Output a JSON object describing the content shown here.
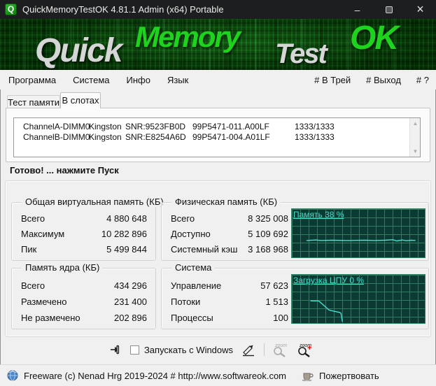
{
  "window": {
    "title": "QuickMemoryTestOK 4.81.1 Admin (x64) Portable",
    "icon_letter": "Q",
    "minimize_glyph": "–",
    "close_glyph": "×"
  },
  "banner": {
    "logo_quick": "Quick",
    "logo_memory": "Memory",
    "logo_test": "Test",
    "logo_ok": "OK"
  },
  "menu": {
    "left": [
      "Программа",
      "Система",
      "Инфо",
      "Язык"
    ],
    "right": [
      "# В Трей",
      "# Выход",
      "# ?"
    ]
  },
  "tabs": [
    {
      "label": "Тест памяти",
      "active": false
    },
    {
      "label": "В слотах",
      "active": true
    }
  ],
  "slots": {
    "rows": [
      [
        "ChannelA-DIMM0",
        "Kingston",
        "SNR:9523FB0D",
        "99P5471-011.A00LF",
        "1333/1333"
      ],
      [
        "ChannelB-DIMM0",
        "Kingston",
        "SNR:E8254A6D",
        "99P5471-004.A01LF",
        "1333/1333"
      ]
    ],
    "scroll_up_glyph": "▲",
    "scroll_down_glyph": "▼"
  },
  "ready_message": "Готово! ... нажмите Пуск",
  "groups": {
    "virtual": {
      "title": "Общая виртуальная память (КБ)",
      "rows": [
        {
          "label": "Всего",
          "value": "4 880 648"
        },
        {
          "label": "Максимум",
          "value": "10 282 896"
        },
        {
          "label": "Пик",
          "value": "5 499 844"
        }
      ]
    },
    "physical": {
      "title": "Физическая память (КБ)",
      "rows": [
        {
          "label": "Всего",
          "value": "8 325 008"
        },
        {
          "label": "Доступно",
          "value": "5 109 692"
        },
        {
          "label": "Системный кэш",
          "value": "3 168 968"
        }
      ]
    },
    "kernel": {
      "title": "Память ядра (КБ)",
      "rows": [
        {
          "label": "Всего",
          "value": "434 296"
        },
        {
          "label": "Размечено",
          "value": "231 400"
        },
        {
          "label": "Не размечено",
          "value": "202 896"
        }
      ]
    },
    "system": {
      "title": "Система",
      "rows": [
        {
          "label": "Управление",
          "value": "57 623"
        },
        {
          "label": "Потоки",
          "value": "1 513"
        },
        {
          "label": "Процессы",
          "value": "100"
        }
      ]
    }
  },
  "chart_data": [
    {
      "type": "line",
      "title": "Память 38 %",
      "x_range": [
        0,
        100
      ],
      "y_range": [
        0,
        100
      ],
      "grid": true,
      "legend_position": "top-left",
      "line_color": "#45e0d0",
      "bg_color": "#0b3a33",
      "grid_color": "#2e7d61",
      "series": [
        {
          "name": "Память %",
          "points": [
            [
              11,
              35
            ],
            [
              18,
              36
            ],
            [
              22,
              35
            ],
            [
              30,
              35.5
            ],
            [
              42,
              35
            ],
            [
              55,
              35.5
            ],
            [
              62,
              35
            ],
            [
              70,
              35.5
            ],
            [
              76,
              36.5
            ],
            [
              79,
              34
            ],
            [
              83,
              36
            ],
            [
              86,
              34.5
            ],
            [
              90,
              35.5
            ],
            [
              93,
              35
            ]
          ]
        }
      ]
    },
    {
      "type": "line",
      "title": "Загрузка ЦПУ 0 %",
      "x_range": [
        0,
        100
      ],
      "y_range": [
        0,
        100
      ],
      "grid": true,
      "legend_position": "top-left",
      "line_color": "#45e0d0",
      "bg_color": "#0b3a33",
      "grid_color": "#2e7d61",
      "series": [
        {
          "name": "ЦПУ %",
          "points": [
            [
              14,
              46
            ],
            [
              20,
              46
            ],
            [
              21,
              44
            ],
            [
              28,
              27
            ],
            [
              31,
              25
            ],
            [
              36,
              22
            ],
            [
              37,
              20
            ],
            [
              38,
              3
            ]
          ]
        }
      ]
    }
  ],
  "controls": {
    "autostart_label": "Запускать с Windows",
    "autostart_checked": false
  },
  "statusbar": {
    "left_text": "Freeware (c) Nenad Hrg 2019-2024 # http://www.softwareok.com",
    "donate_label": "Пожертвовать"
  },
  "colors": {
    "titlebar_bg": "#1d1e1f",
    "banner_green": "#0a3f0a",
    "logo_green": "#1ed21e",
    "logo_silver": "#d6d6d6",
    "graph_bg": "#0b3a33",
    "graph_grid": "#2e7d61",
    "graph_line": "#45e0d0",
    "ui_bg": "#f0f0f0"
  }
}
